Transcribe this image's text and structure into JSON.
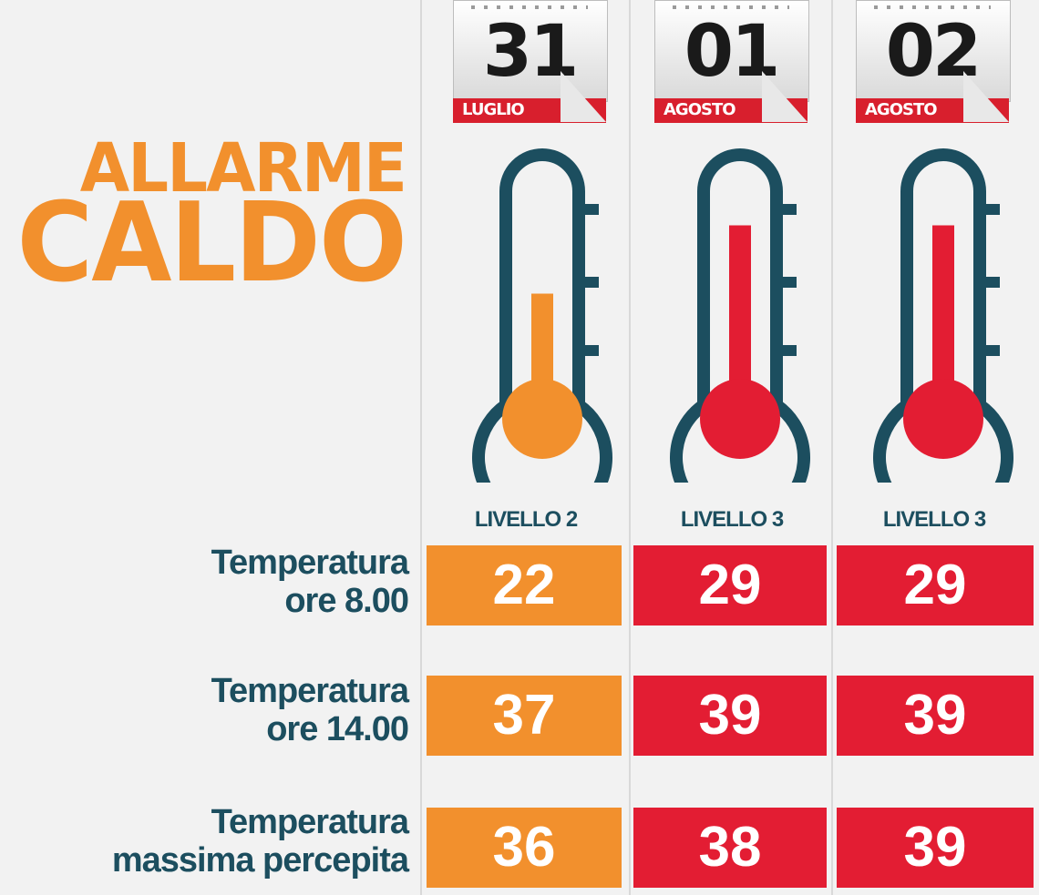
{
  "title": {
    "line1": "ALLARME",
    "line2": "CALDO"
  },
  "colors": {
    "orange": "#f2902d",
    "red": "#e31d33",
    "navy": "#1c4e5f",
    "background": "#f2f2f2"
  },
  "days": [
    {
      "day": "31",
      "month": "LUGLIO",
      "level": "LIVELLO 2",
      "level_color": "orange",
      "thermo_fill": 0.55
    },
    {
      "day": "01",
      "month": "AGOSTO",
      "level": "LIVELLO 3",
      "level_color": "red",
      "thermo_fill": 0.85
    },
    {
      "day": "02",
      "month": "AGOSTO",
      "level": "LIVELLO 3",
      "level_color": "red",
      "thermo_fill": 0.85
    }
  ],
  "rows": [
    {
      "label_line1": "Temperatura",
      "label_line2": "ore 8.00",
      "values": [
        "22",
        "29",
        "29"
      ]
    },
    {
      "label_line1": "Temperatura",
      "label_line2": "ore 14.00",
      "values": [
        "37",
        "39",
        "39"
      ]
    },
    {
      "label_line1": "Temperatura",
      "label_line2": "massima percepita",
      "values": [
        "36",
        "38",
        "39"
      ]
    }
  ]
}
